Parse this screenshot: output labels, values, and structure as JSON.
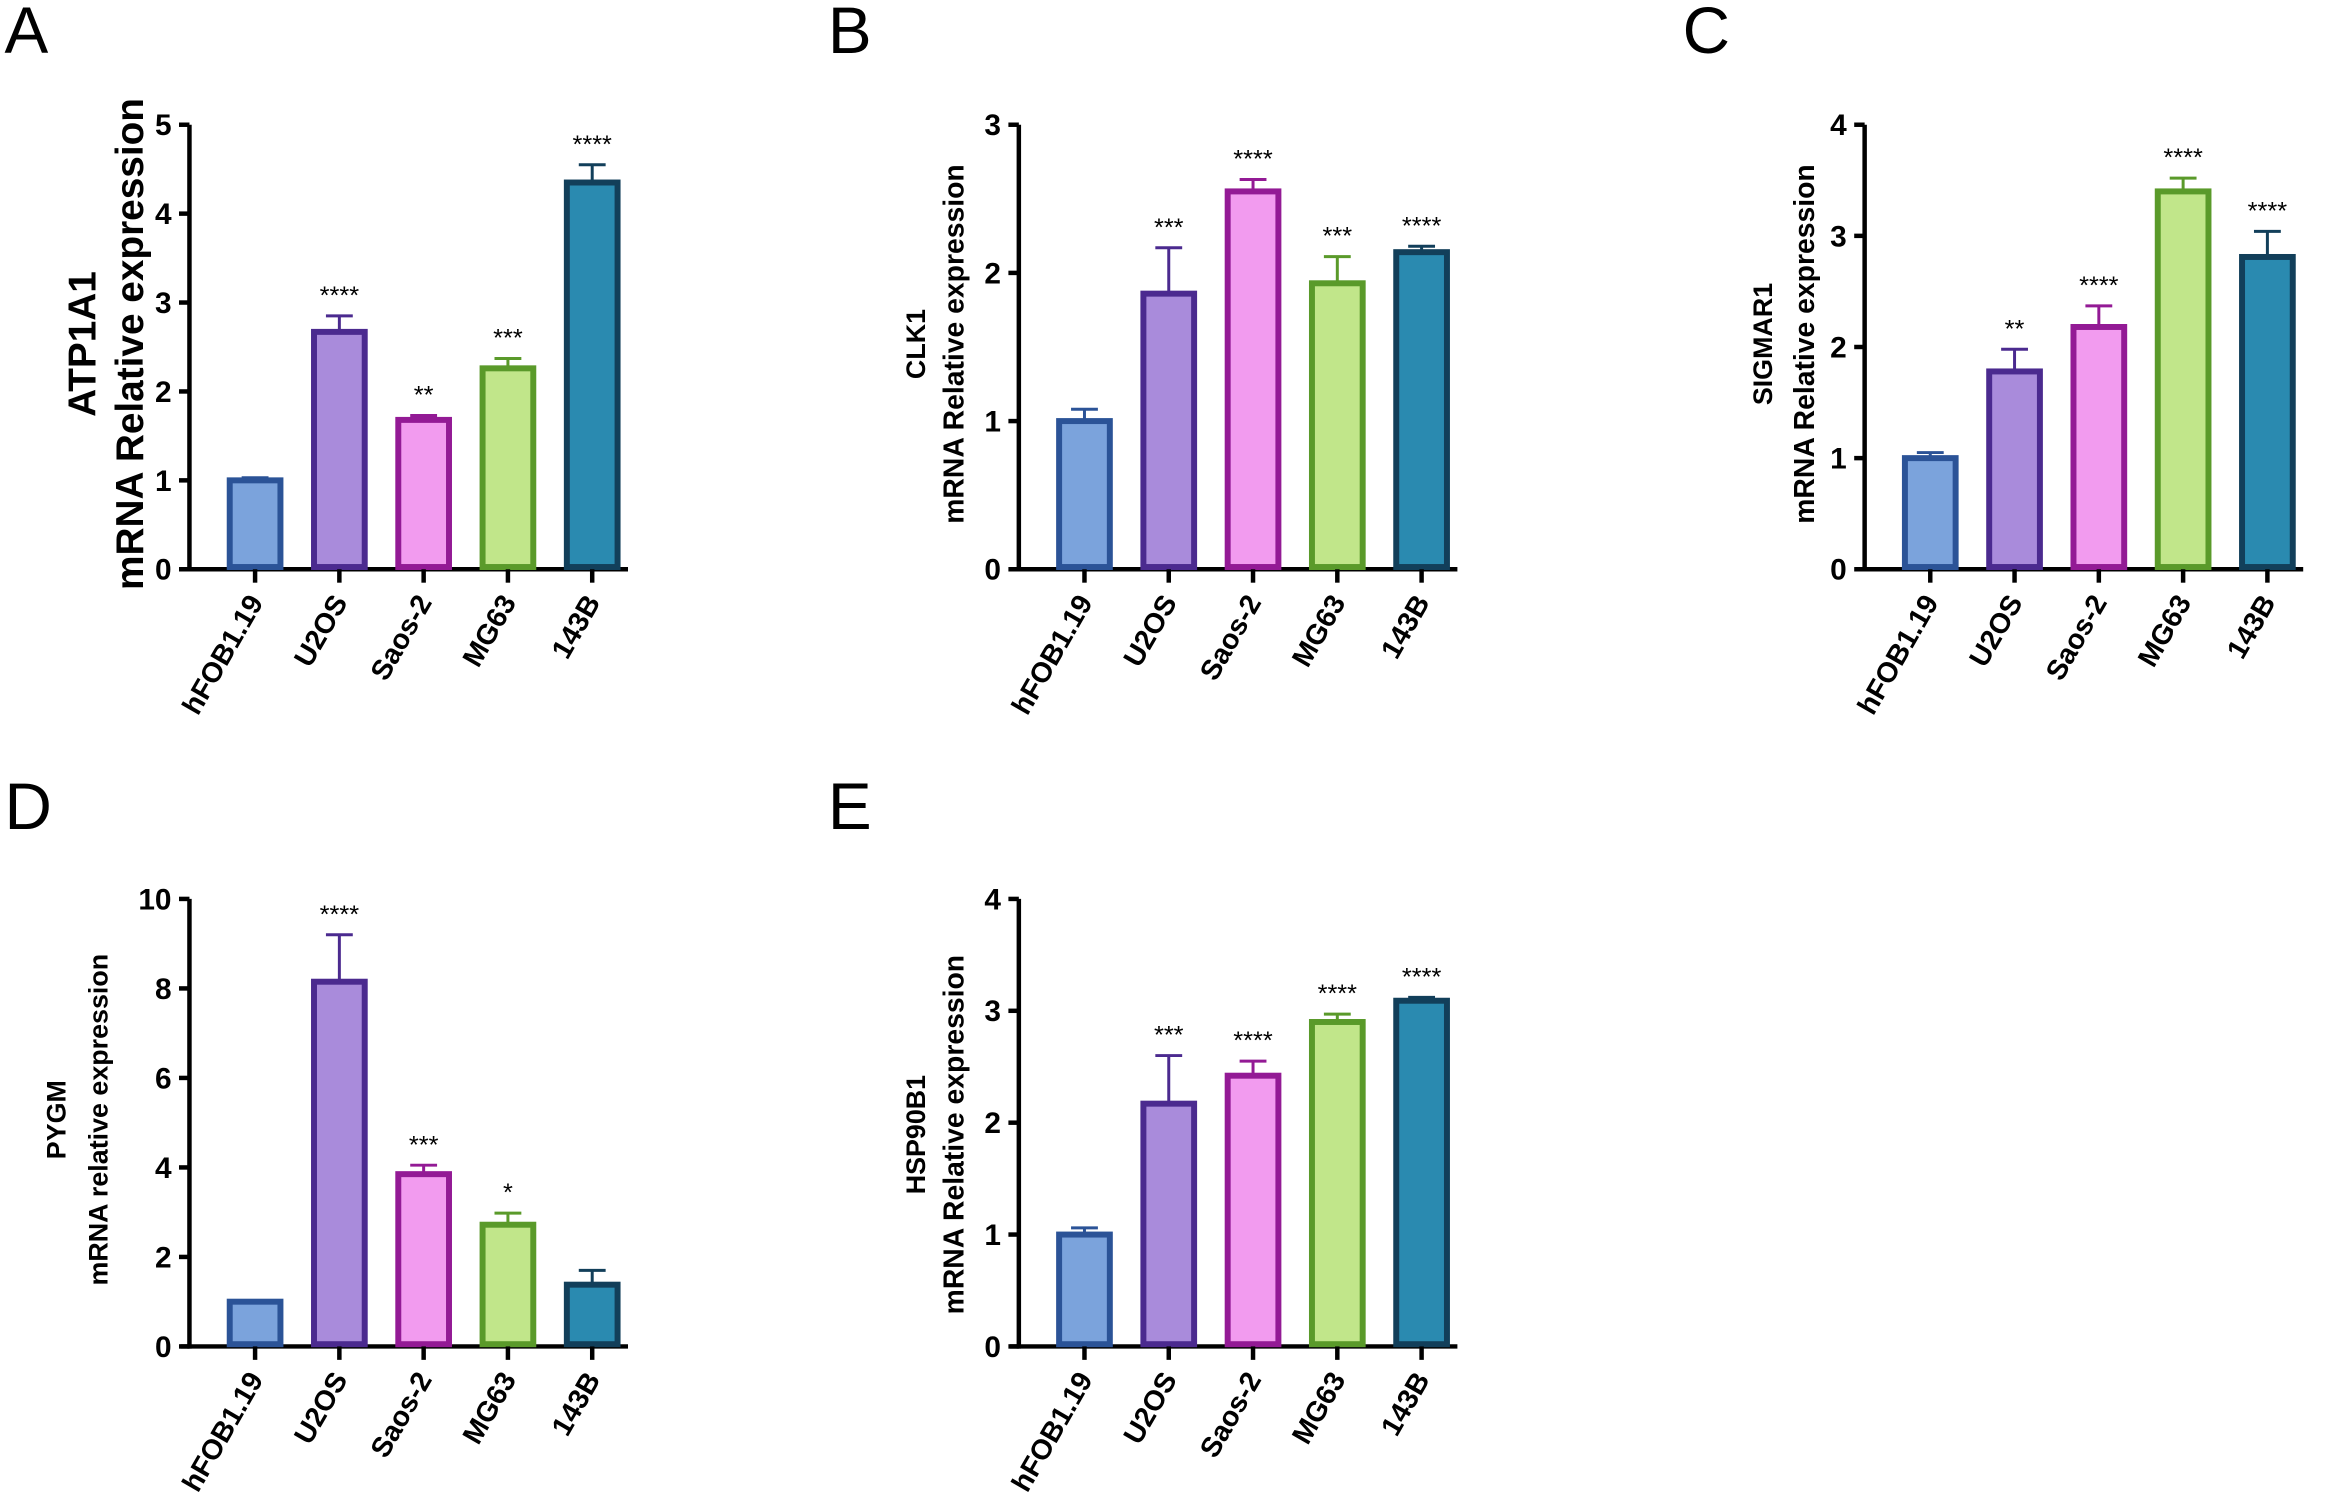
{
  "chart_data": [
    {
      "panel": "A",
      "type": "bar",
      "title": "",
      "ylabel": [
        "ATP1A1",
        "mRNA Relative expression"
      ],
      "categories": [
        "hFOB1.19",
        "U2OS",
        "Saos-2",
        "MG63",
        "143B"
      ],
      "values": [
        1.0,
        2.67,
        1.68,
        2.26,
        4.35
      ],
      "error_upper": [
        1.03,
        2.85,
        1.73,
        2.37,
        4.55
      ],
      "significance": [
        "",
        "****",
        "**",
        "***",
        "****"
      ],
      "ylim": [
        0,
        5
      ],
      "yticks": [
        0,
        1,
        2,
        3,
        4,
        5
      ]
    },
    {
      "panel": "B",
      "type": "bar",
      "ylabel": [
        "CLK1",
        "mRNA Relative expression"
      ],
      "categories": [
        "hFOB1.19",
        "U2OS",
        "Saos-2",
        "MG63",
        "143B"
      ],
      "values": [
        1.0,
        1.86,
        2.55,
        1.93,
        2.14
      ],
      "error_upper": [
        1.08,
        2.17,
        2.63,
        2.11,
        2.18
      ],
      "significance": [
        "",
        "***",
        "****",
        "***",
        "****"
      ],
      "ylim": [
        0,
        3
      ],
      "yticks": [
        0,
        1,
        2,
        3
      ]
    },
    {
      "panel": "C",
      "type": "bar",
      "ylabel": [
        "SIGMAR1",
        "mRNA Relative expression"
      ],
      "categories": [
        "hFOB1.19",
        "U2OS",
        "Saos-2",
        "MG63",
        "143B"
      ],
      "values": [
        1.0,
        1.78,
        2.18,
        3.4,
        2.81
      ],
      "error_upper": [
        1.05,
        1.98,
        2.37,
        3.52,
        3.04
      ],
      "significance": [
        "",
        "**",
        "****",
        "****",
        "****"
      ],
      "ylim": [
        0,
        4
      ],
      "yticks": [
        0,
        1,
        2,
        3,
        4
      ]
    },
    {
      "panel": "D",
      "type": "bar",
      "ylabel": [
        "PYGM",
        "mRNA relative expression"
      ],
      "categories": [
        "hFOB1.19",
        "U2OS",
        "Saos-2",
        "MG63",
        "143B"
      ],
      "values": [
        1.0,
        8.15,
        3.85,
        2.72,
        1.38
      ],
      "error_upper": [
        1.02,
        9.2,
        4.05,
        2.98,
        1.7
      ],
      "significance": [
        "",
        "****",
        "***",
        "*",
        ""
      ],
      "ylim": [
        0,
        10
      ],
      "yticks": [
        0,
        2,
        4,
        6,
        8,
        10
      ]
    },
    {
      "panel": "E",
      "type": "bar",
      "ylabel": [
        "HSP90B1",
        "mRNA Relative expression"
      ],
      "categories": [
        "hFOB1.19",
        "U2OS",
        "Saos-2",
        "MG63",
        "143B"
      ],
      "values": [
        1.0,
        2.17,
        2.42,
        2.9,
        3.09
      ],
      "error_upper": [
        1.06,
        2.6,
        2.55,
        2.97,
        3.12
      ],
      "significance": [
        "",
        "***",
        "****",
        "****",
        "****"
      ],
      "ylim": [
        0,
        4
      ],
      "yticks": [
        0,
        1,
        2,
        3,
        4
      ]
    }
  ],
  "colors": {
    "fill": [
      "#7ba3dc",
      "#a98bdb",
      "#f29bef",
      "#c1e68a",
      "#2a8ab0"
    ],
    "stroke": [
      "#2b5397",
      "#4b2a8f",
      "#931a95",
      "#5a9a2a",
      "#123f5a"
    ]
  }
}
